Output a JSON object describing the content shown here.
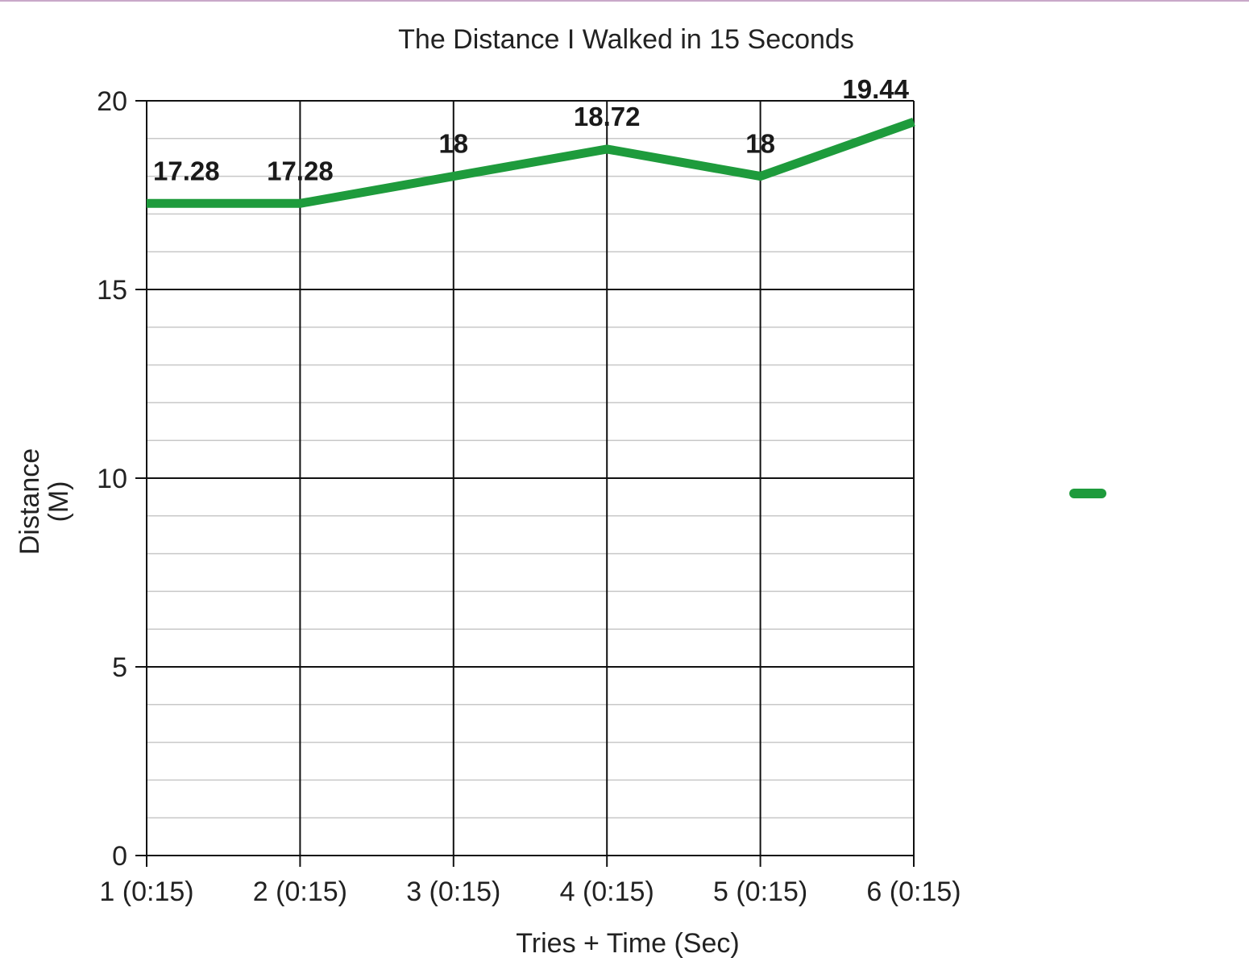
{
  "chart_data": {
    "type": "line",
    "title": "The Distance I Walked in 15 Seconds",
    "xlabel": "Tries + Time (Sec)",
    "ylabel_lines": [
      "Distance",
      "(M)"
    ],
    "categories": [
      "1 (0:15)",
      "2 (0:15)",
      "3 (0:15)",
      "4 (0:15)",
      "5 (0:15)",
      "6 (0:15)"
    ],
    "series": [
      {
        "values": [
          17.28,
          17.28,
          18,
          18.72,
          18,
          19.44
        ],
        "data_labels": [
          "17.28",
          "17.28",
          "18",
          "18.72",
          "18",
          "19.44"
        ],
        "color": "#1e9b3c"
      }
    ],
    "ylim": [
      0,
      20
    ],
    "yticks": [
      0,
      5,
      10,
      15,
      20
    ],
    "ytick_labels": [
      "0",
      "5",
      "10",
      "15",
      "20"
    ],
    "minor_grid_step": 1,
    "grid": true,
    "legend": "right"
  },
  "colors": {
    "major_grid": "#111111",
    "minor_grid": "#c8c8c8",
    "top_rule": "#c9a8c9"
  }
}
